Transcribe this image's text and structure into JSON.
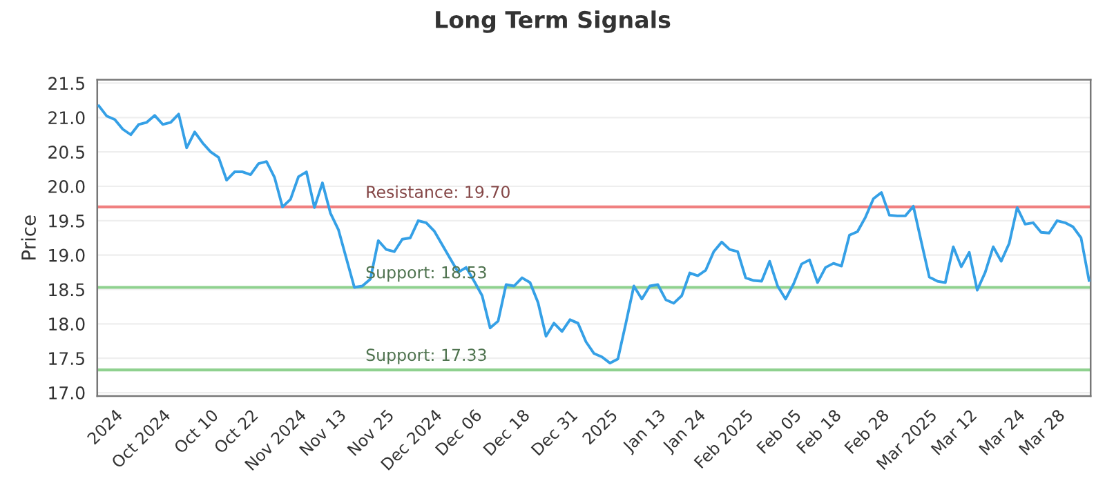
{
  "chart_data": {
    "type": "line",
    "title": "Long Term Signals",
    "ylabel": "Price",
    "categories": [
      null,
      null,
      "2024",
      null,
      null,
      null,
      null,
      null,
      "Oct 2024",
      null,
      null,
      null,
      null,
      null,
      "Oct 10",
      null,
      null,
      null,
      null,
      "Oct 22",
      null,
      null,
      null,
      null,
      null,
      "Nov 2024",
      null,
      null,
      null,
      null,
      "Nov 13",
      null,
      null,
      null,
      null,
      null,
      "Nov 25",
      null,
      null,
      null,
      null,
      null,
      "Dec 2024",
      null,
      null,
      null,
      null,
      "Dec 06",
      null,
      null,
      null,
      null,
      null,
      "Dec 18",
      null,
      null,
      null,
      null,
      null,
      "Dec 31",
      null,
      null,
      null,
      null,
      "2025",
      null,
      null,
      null,
      null,
      null,
      "Jan 13",
      null,
      null,
      null,
      null,
      "Jan 24",
      null,
      null,
      null,
      null,
      null,
      "Feb 2025",
      null,
      null,
      null,
      null,
      null,
      "Feb 05",
      null,
      null,
      null,
      null,
      "Feb 18",
      null,
      null,
      null,
      null,
      null,
      "Feb 28",
      null,
      null,
      null,
      null,
      null,
      "Mar 2025",
      null,
      null,
      null,
      null,
      "Mar 12",
      null,
      null,
      null,
      null,
      null,
      "Mar 24",
      null,
      null,
      null,
      null,
      "Mar 28",
      null,
      null,
      null,
      null
    ],
    "series": [
      {
        "color": "#35a0e6",
        "values": [
          21.17,
          21.02,
          20.97,
          20.83,
          20.75,
          20.9,
          20.93,
          21.03,
          20.9,
          20.93,
          21.05,
          20.56,
          20.79,
          20.63,
          20.5,
          20.42,
          20.09,
          20.21,
          20.21,
          20.17,
          20.33,
          20.36,
          20.13,
          19.7,
          19.81,
          20.14,
          20.21,
          19.69,
          20.05,
          19.61,
          19.37,
          18.95,
          18.53,
          18.55,
          18.65,
          19.21,
          19.08,
          19.05,
          19.23,
          19.25,
          19.5,
          19.47,
          19.35,
          19.15,
          18.95,
          18.75,
          18.82,
          18.62,
          18.41,
          17.94,
          18.04,
          18.57,
          18.55,
          18.67,
          18.6,
          18.31,
          17.82,
          18.01,
          17.89,
          18.06,
          18.01,
          17.74,
          17.57,
          17.52,
          17.43,
          17.49,
          18.01,
          18.55,
          18.36,
          18.55,
          18.57,
          18.35,
          18.3,
          18.41,
          18.74,
          18.7,
          18.78,
          19.05,
          19.19,
          19.08,
          19.05,
          18.67,
          18.63,
          18.62,
          18.91,
          18.55,
          18.36,
          18.58,
          18.87,
          18.93,
          18.6,
          18.82,
          18.88,
          18.84,
          19.29,
          19.34,
          19.55,
          19.82,
          19.91,
          19.58,
          19.57,
          19.57,
          19.71,
          19.19,
          18.68,
          18.62,
          18.6,
          19.12,
          18.83,
          19.04,
          18.49,
          18.75,
          19.12,
          18.91,
          19.17,
          19.69,
          19.45,
          19.47,
          19.33,
          19.32,
          19.5,
          19.47,
          19.41,
          19.25,
          18.63
        ]
      }
    ],
    "ylim": [
      16.95,
      21.55
    ],
    "yticks": [
      {
        "value": 17,
        "label": "17.0"
      },
      {
        "value": 17.5,
        "label": "17.5"
      },
      {
        "value": 18,
        "label": "18.0"
      },
      {
        "value": 18.5,
        "label": "18.5"
      },
      {
        "value": 19,
        "label": "19.0"
      },
      {
        "value": 19.5,
        "label": "19.5"
      },
      {
        "value": 20,
        "label": "20.0"
      },
      {
        "value": 20.5,
        "label": "20.5"
      },
      {
        "value": 21,
        "label": "21.0"
      },
      {
        "value": 21.5,
        "label": "21.5"
      }
    ],
    "ref_lines": [
      {
        "axis": "y",
        "value": 19.7,
        "label": "Resistance: 19.70",
        "color": "#f08080"
      },
      {
        "axis": "y",
        "value": 18.53,
        "label": "Support: 18.53",
        "color": "#8fd18f"
      },
      {
        "axis": "y",
        "value": 17.33,
        "label": "Support: 17.33",
        "color": "#8fd18f"
      }
    ],
    "grid": "y",
    "marker": "none",
    "line_style": "solid"
  }
}
